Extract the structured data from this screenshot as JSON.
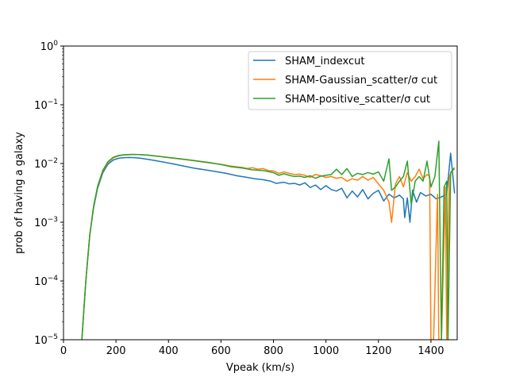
{
  "chart_data": {
    "type": "line",
    "title": "",
    "xlabel": "Vpeak (km/s)",
    "ylabel": "prob of having a galaxy",
    "xlim": [
      0,
      1500
    ],
    "ylim_log": [
      -5,
      0
    ],
    "yscale": "log",
    "x_ticks": [
      0,
      200,
      400,
      600,
      800,
      1000,
      1200,
      1400
    ],
    "x_tick_labels": [
      "0",
      "200",
      "400",
      "600",
      "800",
      "1000",
      "1200",
      "1400"
    ],
    "y_ticks_log": [
      -5,
      -4,
      -3,
      -2,
      -1,
      0
    ],
    "y_tick_bases": [
      "10",
      "10",
      "10",
      "10",
      "10",
      "10"
    ],
    "y_tick_exps": [
      "−5",
      "−4",
      "−3",
      "−2",
      "−1",
      "0"
    ],
    "legend_position": "top-right",
    "grid": false,
    "series": [
      {
        "name": "SHAM_indexcut",
        "color": "#1f77b4",
        "points": [
          [
            70,
            1e-05
          ],
          [
            85,
            0.0001
          ],
          [
            100,
            0.0006
          ],
          [
            115,
            0.0018
          ],
          [
            130,
            0.0038
          ],
          [
            150,
            0.007
          ],
          [
            170,
            0.0098
          ],
          [
            190,
            0.0115
          ],
          [
            210,
            0.0123
          ],
          [
            230,
            0.0126
          ],
          [
            250,
            0.0127
          ],
          [
            270,
            0.0126
          ],
          [
            300,
            0.0122
          ],
          [
            340,
            0.0114
          ],
          [
            380,
            0.0106
          ],
          [
            420,
            0.0098
          ],
          [
            460,
            0.009
          ],
          [
            500,
            0.0083
          ],
          [
            540,
            0.0078
          ],
          [
            580,
            0.0073
          ],
          [
            620,
            0.0068
          ],
          [
            660,
            0.0062
          ],
          [
            700,
            0.0058
          ],
          [
            730,
            0.0055
          ],
          [
            760,
            0.0053
          ],
          [
            790,
            0.005
          ],
          [
            810,
            0.0046
          ],
          [
            840,
            0.0048
          ],
          [
            860,
            0.0045
          ],
          [
            880,
            0.0046
          ],
          [
            900,
            0.0043
          ],
          [
            920,
            0.0047
          ],
          [
            940,
            0.0039
          ],
          [
            960,
            0.0043
          ],
          [
            980,
            0.0036
          ],
          [
            1000,
            0.0042
          ],
          [
            1020,
            0.0036
          ],
          [
            1040,
            0.0034
          ],
          [
            1060,
            0.0038
          ],
          [
            1080,
            0.0026
          ],
          [
            1100,
            0.0034
          ],
          [
            1120,
            0.0027
          ],
          [
            1140,
            0.0036
          ],
          [
            1160,
            0.0025
          ],
          [
            1180,
            0.0031
          ],
          [
            1200,
            0.0035
          ],
          [
            1220,
            0.0023
          ],
          [
            1240,
            0.003
          ],
          [
            1260,
            0.0026
          ],
          [
            1280,
            0.0029
          ],
          [
            1295,
            0.0025
          ],
          [
            1300,
            0.0012
          ],
          [
            1310,
            0.0026
          ],
          [
            1320,
            0.001
          ],
          [
            1330,
            0.0035
          ],
          [
            1345,
            0.0022
          ],
          [
            1360,
            0.0032
          ],
          [
            1380,
            0.0028
          ],
          [
            1400,
            0.003
          ],
          [
            1420,
            0.0025
          ],
          [
            1440,
            0.0027
          ],
          [
            1460,
            0.003
          ],
          [
            1475,
            0.015
          ],
          [
            1490,
            0.0031
          ]
        ]
      },
      {
        "name": "SHAM-Gaussian_scatter/σ cut",
        "color": "#ff7f0e",
        "points": [
          [
            70,
            1e-05
          ],
          [
            85,
            0.0001
          ],
          [
            100,
            0.0006
          ],
          [
            115,
            0.0019
          ],
          [
            130,
            0.004
          ],
          [
            150,
            0.0075
          ],
          [
            170,
            0.0105
          ],
          [
            190,
            0.0125
          ],
          [
            210,
            0.0135
          ],
          [
            230,
            0.014
          ],
          [
            260,
            0.0142
          ],
          [
            290,
            0.0142
          ],
          [
            320,
            0.0139
          ],
          [
            360,
            0.0133
          ],
          [
            400,
            0.0126
          ],
          [
            440,
            0.012
          ],
          [
            480,
            0.0114
          ],
          [
            520,
            0.0108
          ],
          [
            560,
            0.0102
          ],
          [
            600,
            0.0097
          ],
          [
            640,
            0.009
          ],
          [
            680,
            0.0086
          ],
          [
            700,
            0.0082
          ],
          [
            720,
            0.0085
          ],
          [
            740,
            0.008
          ],
          [
            760,
            0.0082
          ],
          [
            780,
            0.0076
          ],
          [
            800,
            0.0075
          ],
          [
            820,
            0.0068
          ],
          [
            840,
            0.0072
          ],
          [
            860,
            0.0068
          ],
          [
            880,
            0.0065
          ],
          [
            900,
            0.0066
          ],
          [
            920,
            0.0063
          ],
          [
            940,
            0.0058
          ],
          [
            960,
            0.0065
          ],
          [
            980,
            0.0062
          ],
          [
            1000,
            0.0058
          ],
          [
            1020,
            0.006
          ],
          [
            1040,
            0.0056
          ],
          [
            1060,
            0.0058
          ],
          [
            1080,
            0.005
          ],
          [
            1100,
            0.0055
          ],
          [
            1120,
            0.0052
          ],
          [
            1140,
            0.006
          ],
          [
            1160,
            0.0052
          ],
          [
            1180,
            0.0058
          ],
          [
            1200,
            0.0045
          ],
          [
            1220,
            0.0035
          ],
          [
            1240,
            0.0022
          ],
          [
            1250,
            0.001
          ],
          [
            1265,
            0.0045
          ],
          [
            1280,
            0.006
          ],
          [
            1295,
            0.004
          ],
          [
            1310,
            0.007
          ],
          [
            1325,
            0.005
          ],
          [
            1340,
            0.006
          ],
          [
            1355,
            0.008
          ],
          [
            1370,
            0.0055
          ],
          [
            1385,
            0.0065
          ],
          [
            1395,
            0.006
          ],
          [
            1400,
            1e-05
          ],
          [
            1410,
            1e-05
          ],
          [
            1425,
            0.003
          ],
          [
            1430,
            1e-05
          ],
          [
            1440,
            1e-05
          ],
          [
            1455,
            0.004
          ],
          [
            1460,
            1e-05
          ],
          [
            1470,
            0.006
          ],
          [
            1480,
            0.0075
          ],
          [
            1490,
            0.008
          ]
        ]
      },
      {
        "name": "SHAM-positive_scatter/σ cut",
        "color": "#2ca02c",
        "points": [
          [
            70,
            1e-05
          ],
          [
            85,
            0.0001
          ],
          [
            100,
            0.0006
          ],
          [
            115,
            0.0019
          ],
          [
            130,
            0.0041
          ],
          [
            150,
            0.0077
          ],
          [
            170,
            0.0108
          ],
          [
            190,
            0.0128
          ],
          [
            210,
            0.0137
          ],
          [
            230,
            0.0141
          ],
          [
            260,
            0.0143
          ],
          [
            290,
            0.0142
          ],
          [
            320,
            0.0139
          ],
          [
            360,
            0.0133
          ],
          [
            400,
            0.0127
          ],
          [
            440,
            0.0121
          ],
          [
            480,
            0.0115
          ],
          [
            520,
            0.0109
          ],
          [
            560,
            0.0103
          ],
          [
            600,
            0.0096
          ],
          [
            640,
            0.0088
          ],
          [
            680,
            0.0084
          ],
          [
            720,
            0.0078
          ],
          [
            760,
            0.0076
          ],
          [
            780,
            0.0073
          ],
          [
            800,
            0.007
          ],
          [
            820,
            0.0063
          ],
          [
            840,
            0.0067
          ],
          [
            860,
            0.0063
          ],
          [
            880,
            0.006
          ],
          [
            900,
            0.0061
          ],
          [
            920,
            0.0058
          ],
          [
            940,
            0.0062
          ],
          [
            960,
            0.0056
          ],
          [
            980,
            0.0061
          ],
          [
            1000,
            0.0063
          ],
          [
            1020,
            0.0065
          ],
          [
            1040,
            0.008
          ],
          [
            1060,
            0.0065
          ],
          [
            1080,
            0.0082
          ],
          [
            1100,
            0.006
          ],
          [
            1120,
            0.0068
          ],
          [
            1140,
            0.0065
          ],
          [
            1160,
            0.007
          ],
          [
            1180,
            0.0066
          ],
          [
            1200,
            0.0072
          ],
          [
            1220,
            0.005
          ],
          [
            1240,
            0.012
          ],
          [
            1250,
            0.0035
          ],
          [
            1265,
            0.004
          ],
          [
            1280,
            0.005
          ],
          [
            1295,
            0.006
          ],
          [
            1310,
            0.011
          ],
          [
            1325,
            0.002
          ],
          [
            1340,
            0.005
          ],
          [
            1355,
            0.006
          ],
          [
            1370,
            0.005
          ],
          [
            1385,
            0.011
          ],
          [
            1400,
            0.004
          ],
          [
            1415,
            0.006
          ],
          [
            1430,
            0.024
          ],
          [
            1440,
            1e-05
          ],
          [
            1450,
            0.004
          ],
          [
            1460,
            0.005
          ],
          [
            1465,
            1e-05
          ],
          [
            1475,
            0.007
          ],
          [
            1490,
            0.0085
          ]
        ]
      }
    ]
  }
}
